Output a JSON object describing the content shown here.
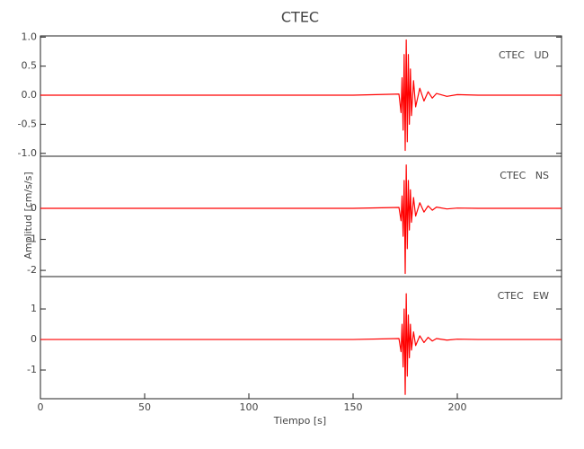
{
  "chart_data": [
    {
      "type": "line",
      "title": "CTEC",
      "annotation": "CTEC   UD",
      "color": "#ff0000",
      "x": [
        0,
        50,
        100,
        150,
        172,
        173,
        173.5,
        174,
        174.5,
        175,
        175.5,
        176,
        176.5,
        177,
        177.5,
        178,
        179,
        180,
        182,
        184,
        186,
        188,
        190,
        195,
        200,
        210,
        250
      ],
      "values": [
        0,
        0,
        0,
        0,
        0.02,
        -0.3,
        0.3,
        -0.6,
        0.7,
        -0.95,
        0.95,
        -0.8,
        0.7,
        -0.5,
        0.45,
        -0.35,
        0.25,
        -0.2,
        0.12,
        -0.1,
        0.06,
        -0.05,
        0.03,
        -0.02,
        0.01,
        0,
        0
      ],
      "xlim": [
        0,
        250
      ],
      "ylim": [
        -1.05,
        1.02
      ],
      "yticks": [
        {
          "value": 1,
          "label": "1.0"
        },
        0.5,
        {
          "value": 0,
          "label": "0.0"
        },
        -0.5,
        {
          "value": -1,
          "label": "-1.0"
        }
      ]
    },
    {
      "type": "line",
      "annotation": "CTEC   NS",
      "ylabel": "Amplitud [cm/s/s]",
      "color": "#ff0000",
      "x": [
        0,
        50,
        100,
        150,
        172,
        173,
        173.5,
        174,
        174.5,
        175,
        175.5,
        176,
        176.5,
        177,
        177.5,
        178,
        179,
        180,
        182,
        184,
        186,
        188,
        190,
        195,
        200,
        210,
        250
      ],
      "values": [
        0,
        0,
        0,
        0,
        0.03,
        -0.4,
        0.4,
        -0.9,
        0.9,
        -2.1,
        1.4,
        -1.3,
        0.9,
        -0.7,
        0.6,
        -0.45,
        0.35,
        -0.25,
        0.18,
        -0.12,
        0.08,
        -0.06,
        0.04,
        -0.02,
        0.01,
        0,
        0
      ],
      "xlim": [
        0,
        250
      ],
      "ylim": [
        -2.2,
        1.68
      ],
      "yticks": [
        -2,
        -1,
        0
      ]
    },
    {
      "type": "line",
      "annotation": "CTEC   EW",
      "xlabel": "Tiempo [s]",
      "color": "#ff0000",
      "x": [
        0,
        50,
        100,
        150,
        172,
        173,
        173.5,
        174,
        174.5,
        175,
        175.5,
        176,
        176.5,
        177,
        177.5,
        178,
        179,
        180,
        182,
        184,
        186,
        188,
        190,
        195,
        200,
        210,
        250
      ],
      "values": [
        0,
        0,
        0,
        0,
        0.03,
        -0.4,
        0.5,
        -0.9,
        1.0,
        -1.8,
        1.5,
        -1.2,
        0.8,
        -0.6,
        0.5,
        -0.35,
        0.25,
        -0.2,
        0.12,
        -0.1,
        0.07,
        -0.05,
        0.03,
        -0.02,
        0.01,
        0,
        0
      ],
      "xlim": [
        0,
        250
      ],
      "ylim": [
        -1.94,
        2.06
      ],
      "yticks": [
        -1,
        0,
        1
      ],
      "xticks": [
        0,
        50,
        100,
        150,
        200
      ]
    }
  ]
}
